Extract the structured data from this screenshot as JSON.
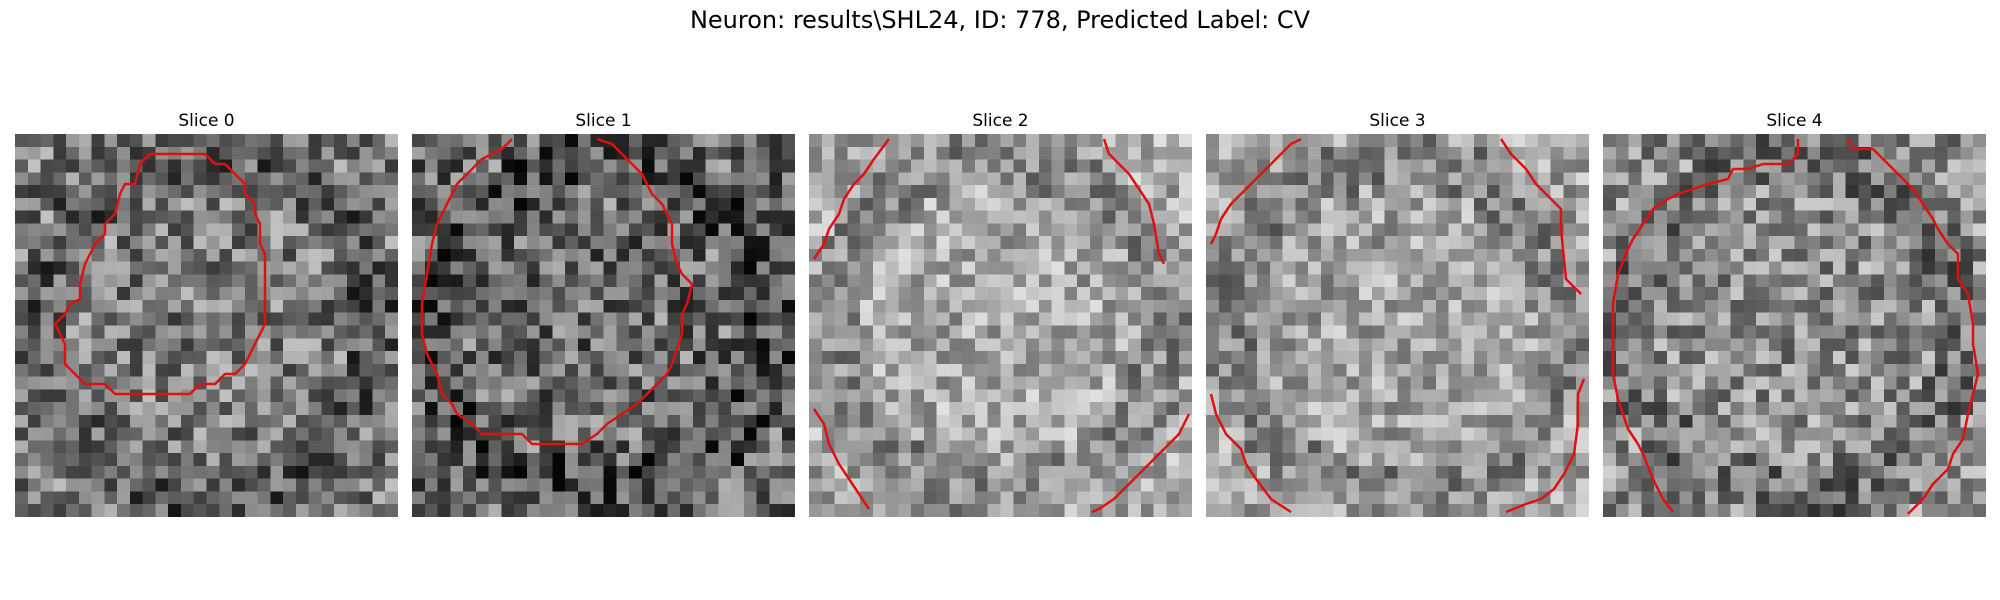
{
  "figure": {
    "title": "Neuron: results\\SHL24, ID: 778, Predicted Label: CV"
  },
  "colors": {
    "contour": "#e01010"
  },
  "panels": [
    {
      "title": "Slice 0",
      "brightness": 0.48,
      "contrast": 0.28,
      "seed": 11
    },
    {
      "title": "Slice 1",
      "brightness": 0.42,
      "contrast": 0.3,
      "seed": 23
    },
    {
      "title": "Slice 2",
      "brightness": 0.66,
      "contrast": 0.22,
      "seed": 37
    },
    {
      "title": "Slice 3",
      "brightness": 0.64,
      "contrast": 0.22,
      "seed": 51
    },
    {
      "title": "Slice 4",
      "brightness": 0.56,
      "contrast": 0.26,
      "seed": 67
    }
  ]
}
